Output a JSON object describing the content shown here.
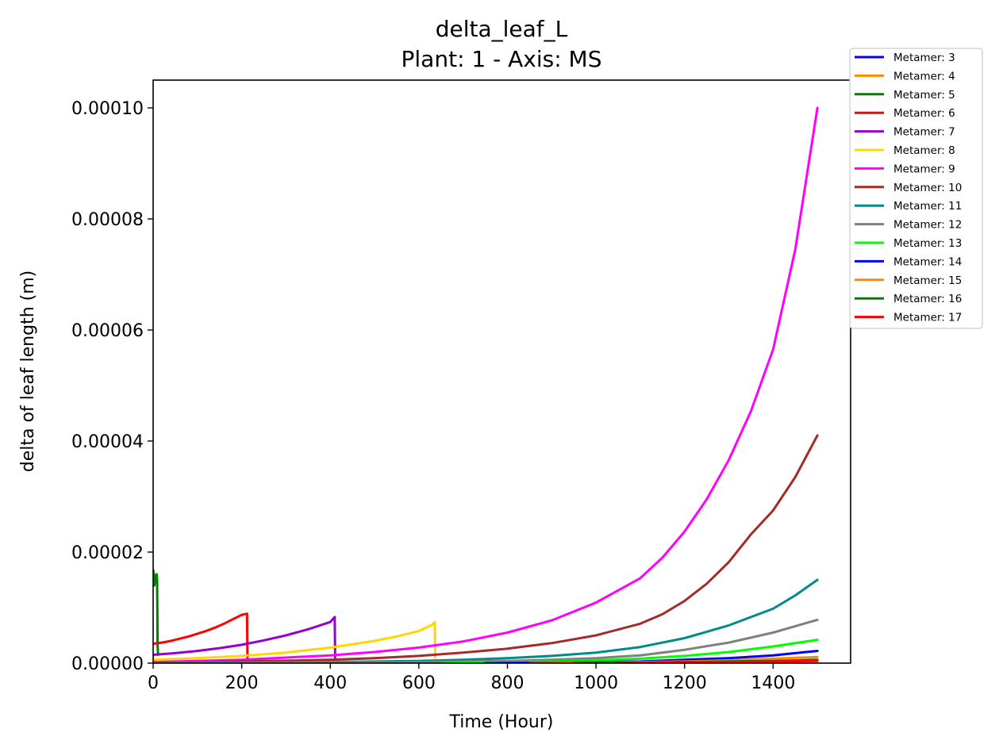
{
  "chart_data": {
    "type": "line",
    "title": "delta_leaf_L",
    "subtitle": "Plant: 1 - Axis: MS",
    "xlabel": "Time (Hour)",
    "ylabel": "delta of leaf length (m)",
    "xlim": [
      0,
      1575
    ],
    "ylim": [
      0,
      0.000105
    ],
    "xticks": [
      0,
      200,
      400,
      600,
      800,
      1000,
      1200,
      1400
    ],
    "xtick_labels": [
      "0",
      "200",
      "400",
      "600",
      "800",
      "1000",
      "1200",
      "1400"
    ],
    "yticks": [
      0,
      2e-05,
      4e-05,
      6e-05,
      8e-05,
      0.0001
    ],
    "ytick_labels": [
      "0.00000",
      "0.00002",
      "0.00004",
      "0.00006",
      "0.00008",
      "0.00010"
    ],
    "grid": false,
    "legend_position": "outside-top-right",
    "series": [
      {
        "name": "Metamer: 3",
        "color": "#0000ff",
        "x": [
          0,
          1,
          2,
          3
        ],
        "y": [
          5e-07,
          5e-07,
          4e-07,
          0
        ]
      },
      {
        "name": "Metamer: 4",
        "color": "#ff8c00",
        "x": [
          0,
          1,
          2,
          3
        ],
        "y": [
          8e-07,
          7e-07,
          6e-07,
          0
        ]
      },
      {
        "name": "Metamer: 5",
        "color": "#008000",
        "x": [
          0,
          2,
          3,
          5,
          6,
          8,
          9,
          10,
          11
        ],
        "y": [
          1.68e-05,
          1.58e-05,
          1.4e-05,
          1.58e-05,
          1.45e-05,
          1.6e-05,
          1.5e-05,
          3.5e-06,
          1.5e-06
        ]
      },
      {
        "name": "Metamer: 6",
        "color": "#ff0000",
        "x": [
          0,
          20,
          40,
          60,
          80,
          100,
          120,
          140,
          160,
          180,
          200,
          212,
          213
        ],
        "y": [
          3.5e-06,
          3.7e-06,
          4e-06,
          4.4e-06,
          4.8e-06,
          5.3e-06,
          5.8e-06,
          6.4e-06,
          7.1e-06,
          7.9e-06,
          8.7e-06,
          8.9e-06,
          1e-06
        ]
      },
      {
        "name": "Metamer: 7",
        "color": "#9400d3",
        "x": [
          0,
          50,
          100,
          150,
          200,
          250,
          300,
          350,
          400,
          410,
          411
        ],
        "y": [
          1.5e-06,
          1.8e-06,
          2.2e-06,
          2.7e-06,
          3.3e-06,
          4.1e-06,
          5e-06,
          6.1e-06,
          7.4e-06,
          8.3e-06,
          1e-06
        ]
      },
      {
        "name": "Metamer: 8",
        "color": "#ffd700",
        "x": [
          0,
          100,
          200,
          300,
          400,
          500,
          550,
          600,
          630,
          636,
          637
        ],
        "y": [
          6e-07,
          9e-07,
          1.3e-06,
          1.9e-06,
          2.8e-06,
          4e-06,
          4.8e-06,
          5.8e-06,
          6.9e-06,
          7.4e-06,
          1e-06
        ]
      },
      {
        "name": "Metamer: 9",
        "color": "#ff00ff",
        "x": [
          0,
          100,
          200,
          300,
          400,
          500,
          600,
          700,
          800,
          900,
          1000,
          1100,
          1150,
          1200,
          1250,
          1300,
          1350,
          1400,
          1450,
          1500
        ],
        "y": [
          2e-07,
          4e-07,
          6e-07,
          1e-06,
          1.4e-06,
          2e-06,
          2.8e-06,
          3.9e-06,
          5.5e-06,
          7.7e-06,
          1.09e-05,
          1.53e-05,
          1.9e-05,
          2.37e-05,
          2.95e-05,
          3.66e-05,
          4.54e-05,
          5.65e-05,
          7.45e-05,
          0.0001
        ]
      },
      {
        "name": "Metamer: 10",
        "color": "#a52a2a",
        "x": [
          0,
          200,
          400,
          500,
          600,
          700,
          800,
          900,
          1000,
          1100,
          1150,
          1200,
          1250,
          1300,
          1350,
          1400,
          1450,
          1500
        ],
        "y": [
          0,
          3e-07,
          6e-07,
          9e-07,
          1.3e-06,
          1.9e-06,
          2.6e-06,
          3.6e-06,
          5e-06,
          7.1e-06,
          8.8e-06,
          1.12e-05,
          1.43e-05,
          1.82e-05,
          2.32e-05,
          2.75e-05,
          3.35e-05,
          4.1e-05
        ]
      },
      {
        "name": "Metamer: 11",
        "color": "#008b8b",
        "x": [
          0,
          400,
          600,
          700,
          800,
          900,
          1000,
          1100,
          1200,
          1300,
          1400,
          1450,
          1500
        ],
        "y": [
          0,
          2e-07,
          4e-07,
          6e-07,
          9e-07,
          1.3e-06,
          1.9e-06,
          2.9e-06,
          4.5e-06,
          6.8e-06,
          9.8e-06,
          1.22e-05,
          1.5e-05
        ]
      },
      {
        "name": "Metamer: 12",
        "color": "#808080",
        "x": [
          0,
          600,
          800,
          900,
          1000,
          1100,
          1200,
          1300,
          1400,
          1500
        ],
        "y": [
          0,
          2e-07,
          4e-07,
          6e-07,
          9e-07,
          1.4e-06,
          2.4e-06,
          3.7e-06,
          5.5e-06,
          7.8e-06
        ]
      },
      {
        "name": "Metamer: 13",
        "color": "#00ff00",
        "x": [
          650,
          800,
          900,
          1000,
          1100,
          1200,
          1300,
          1400,
          1500
        ],
        "y": [
          0,
          2e-07,
          3e-07,
          5e-07,
          8e-07,
          1.3e-06,
          2e-06,
          3e-06,
          4.2e-06
        ]
      },
      {
        "name": "Metamer: 14",
        "color": "#0000ff",
        "x": [
          750,
          900,
          1000,
          1100,
          1200,
          1300,
          1400,
          1500
        ],
        "y": [
          0,
          1e-07,
          2e-07,
          3e-07,
          6e-07,
          9e-07,
          1.4e-06,
          2.2e-06
        ]
      },
      {
        "name": "Metamer: 15",
        "color": "#ff8c00",
        "x": [
          850,
          1000,
          1200,
          1300,
          1400,
          1500
        ],
        "y": [
          0,
          1e-07,
          3e-07,
          5e-07,
          8e-07,
          1.1e-06
        ]
      },
      {
        "name": "Metamer: 16",
        "color": "#008000",
        "x": [
          950,
          1100,
          1300,
          1400,
          1500
        ],
        "y": [
          0,
          1e-07,
          3e-07,
          4e-07,
          6e-07
        ]
      },
      {
        "name": "Metamer: 17",
        "color": "#ff0000",
        "x": [
          1050,
          1200,
          1300,
          1400,
          1500
        ],
        "y": [
          0,
          1e-07,
          2e-07,
          3e-07,
          4e-07
        ]
      }
    ]
  }
}
